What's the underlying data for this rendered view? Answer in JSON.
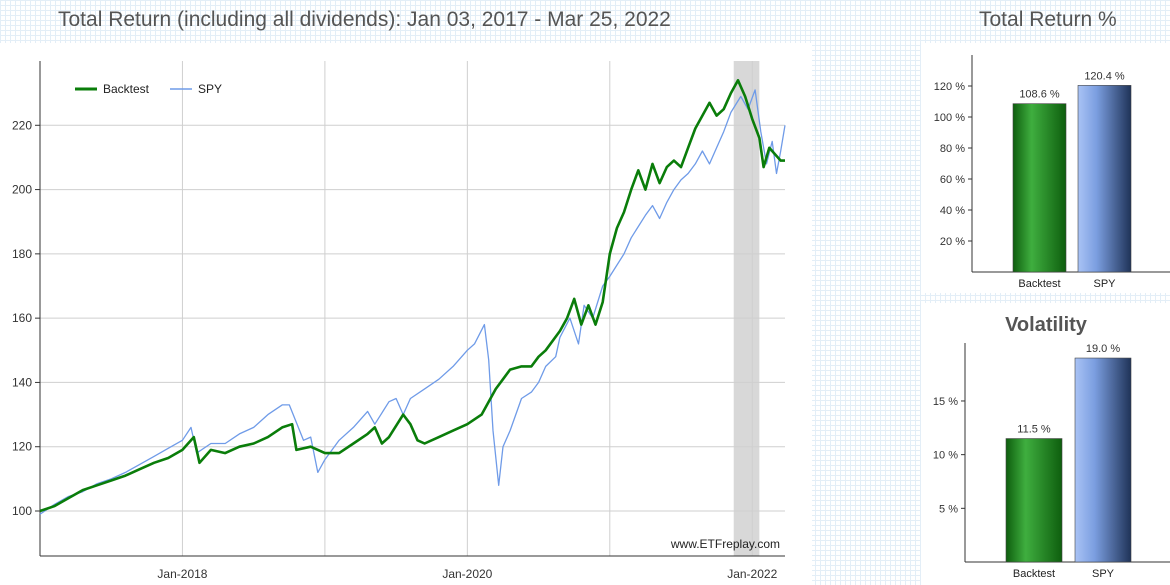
{
  "page": {
    "title": "Total Return (including all dividends): Jan 03, 2017 - Mar 25, 2022",
    "side_title": "Total Return %",
    "watermark": "www.ETFreplay.com"
  },
  "chart_data": [
    {
      "type": "line",
      "x_ticks": [
        "Jan-2018",
        "Jan-2020",
        "Jan-2022"
      ],
      "y_ticks": [
        "100",
        "120",
        "140",
        "160",
        "180",
        "200",
        "220"
      ],
      "ylim": [
        86,
        240
      ],
      "x_range": [
        2017.0,
        2022.23
      ],
      "grid": true,
      "legend_position": "top-left",
      "highlight_range": [
        2021.87,
        2022.05
      ],
      "series": [
        {
          "name": "Backtest",
          "color": "#0a7d0a",
          "points": [
            [
              2017.0,
              100
            ],
            [
              2017.1,
              101.5
            ],
            [
              2017.2,
              104
            ],
            [
              2017.3,
              106.5
            ],
            [
              2017.4,
              108
            ],
            [
              2017.5,
              109.5
            ],
            [
              2017.6,
              111
            ],
            [
              2017.7,
              113
            ],
            [
              2017.8,
              115
            ],
            [
              2017.9,
              116.5
            ],
            [
              2018.0,
              119
            ],
            [
              2018.08,
              123
            ],
            [
              2018.12,
              115
            ],
            [
              2018.2,
              119
            ],
            [
              2018.3,
              118
            ],
            [
              2018.4,
              120
            ],
            [
              2018.5,
              121
            ],
            [
              2018.6,
              123
            ],
            [
              2018.7,
              126
            ],
            [
              2018.77,
              127
            ],
            [
              2018.8,
              119
            ],
            [
              2018.9,
              120
            ],
            [
              2019.0,
              118
            ],
            [
              2019.1,
              118
            ],
            [
              2019.2,
              121
            ],
            [
              2019.3,
              124
            ],
            [
              2019.35,
              126
            ],
            [
              2019.4,
              121
            ],
            [
              2019.45,
              123
            ],
            [
              2019.55,
              130
            ],
            [
              2019.6,
              127
            ],
            [
              2019.65,
              122
            ],
            [
              2019.7,
              121
            ],
            [
              2019.8,
              123
            ],
            [
              2019.9,
              125
            ],
            [
              2020.0,
              127
            ],
            [
              2020.1,
              130
            ],
            [
              2020.15,
              134
            ],
            [
              2020.2,
              138
            ],
            [
              2020.25,
              141
            ],
            [
              2020.3,
              144
            ],
            [
              2020.38,
              145
            ],
            [
              2020.45,
              145
            ],
            [
              2020.5,
              148
            ],
            [
              2020.55,
              150
            ],
            [
              2020.65,
              156
            ],
            [
              2020.7,
              160
            ],
            [
              2020.75,
              166
            ],
            [
              2020.8,
              158
            ],
            [
              2020.85,
              164
            ],
            [
              2020.9,
              158
            ],
            [
              2020.95,
              165
            ],
            [
              2021.0,
              180
            ],
            [
              2021.05,
              188
            ],
            [
              2021.1,
              193
            ],
            [
              2021.15,
              200
            ],
            [
              2021.2,
              206
            ],
            [
              2021.25,
              200
            ],
            [
              2021.3,
              208
            ],
            [
              2021.35,
              202
            ],
            [
              2021.4,
              207
            ],
            [
              2021.45,
              209
            ],
            [
              2021.5,
              207
            ],
            [
              2021.55,
              213
            ],
            [
              2021.6,
              219
            ],
            [
              2021.65,
              223
            ],
            [
              2021.7,
              227
            ],
            [
              2021.75,
              223
            ],
            [
              2021.8,
              225
            ],
            [
              2021.85,
              230
            ],
            [
              2021.9,
              234
            ],
            [
              2021.95,
              229
            ],
            [
              2022.0,
              222
            ],
            [
              2022.05,
              216
            ],
            [
              2022.08,
              207
            ],
            [
              2022.12,
              213
            ],
            [
              2022.16,
              211
            ],
            [
              2022.2,
              209
            ],
            [
              2022.23,
              209
            ]
          ]
        },
        {
          "name": "SPY",
          "color": "#6f9be8",
          "points": [
            [
              2017.0,
              99
            ],
            [
              2017.1,
              102
            ],
            [
              2017.2,
              104.5
            ],
            [
              2017.3,
              106
            ],
            [
              2017.4,
              108.5
            ],
            [
              2017.5,
              110
            ],
            [
              2017.6,
              112
            ],
            [
              2017.7,
              114.5
            ],
            [
              2017.8,
              117
            ],
            [
              2017.9,
              119.5
            ],
            [
              2018.0,
              122
            ],
            [
              2018.06,
              126
            ],
            [
              2018.1,
              118
            ],
            [
              2018.2,
              121
            ],
            [
              2018.3,
              121
            ],
            [
              2018.4,
              124
            ],
            [
              2018.5,
              126
            ],
            [
              2018.6,
              130
            ],
            [
              2018.7,
              133
            ],
            [
              2018.75,
              133
            ],
            [
              2018.85,
              122
            ],
            [
              2018.9,
              123
            ],
            [
              2018.95,
              112
            ],
            [
              2019.0,
              116
            ],
            [
              2019.1,
              122
            ],
            [
              2019.2,
              126
            ],
            [
              2019.3,
              131
            ],
            [
              2019.35,
              127
            ],
            [
              2019.45,
              134
            ],
            [
              2019.5,
              135
            ],
            [
              2019.55,
              130
            ],
            [
              2019.6,
              135
            ],
            [
              2019.7,
              138
            ],
            [
              2019.8,
              141
            ],
            [
              2019.9,
              145
            ],
            [
              2020.0,
              150
            ],
            [
              2020.05,
              152
            ],
            [
              2020.12,
              158
            ],
            [
              2020.15,
              147
            ],
            [
              2020.18,
              125
            ],
            [
              2020.22,
              108
            ],
            [
              2020.25,
              120
            ],
            [
              2020.3,
              125
            ],
            [
              2020.38,
              135
            ],
            [
              2020.45,
              137
            ],
            [
              2020.5,
              140
            ],
            [
              2020.55,
              145
            ],
            [
              2020.62,
              148
            ],
            [
              2020.65,
              154
            ],
            [
              2020.72,
              160
            ],
            [
              2020.78,
              152
            ],
            [
              2020.82,
              164
            ],
            [
              2020.88,
              160
            ],
            [
              2020.95,
              170
            ],
            [
              2021.0,
              173
            ],
            [
              2021.1,
              180
            ],
            [
              2021.15,
              185
            ],
            [
              2021.25,
              192
            ],
            [
              2021.3,
              195
            ],
            [
              2021.35,
              191
            ],
            [
              2021.4,
              196
            ],
            [
              2021.45,
              200
            ],
            [
              2021.5,
              203
            ],
            [
              2021.55,
              205
            ],
            [
              2021.6,
              208
            ],
            [
              2021.65,
              212
            ],
            [
              2021.7,
              208
            ],
            [
              2021.75,
              213
            ],
            [
              2021.8,
              218
            ],
            [
              2021.85,
              224
            ],
            [
              2021.92,
              229
            ],
            [
              2021.97,
              225
            ],
            [
              2022.02,
              231
            ],
            [
              2022.06,
              218
            ],
            [
              2022.1,
              208
            ],
            [
              2022.14,
              215
            ],
            [
              2022.17,
              205
            ],
            [
              2022.2,
              212
            ],
            [
              2022.23,
              220
            ]
          ]
        }
      ]
    },
    {
      "type": "bar",
      "title": "",
      "categories": [
        "Backtest",
        "SPY"
      ],
      "values": [
        108.6,
        120.4
      ],
      "value_labels": [
        "108.6 %",
        "120.4 %"
      ],
      "y_ticks": [
        "20 %",
        "40 %",
        "60 %",
        "80 %",
        "100 %",
        "120 %"
      ],
      "ylim": [
        0,
        140
      ],
      "colors": [
        "#1f8a1f",
        "#7b9ee0"
      ]
    },
    {
      "type": "bar",
      "title": "Volatility",
      "categories": [
        "Backtest",
        "SPY"
      ],
      "values": [
        11.5,
        19.0
      ],
      "value_labels": [
        "11.5 %",
        "19.0 %"
      ],
      "y_ticks": [
        "5 %",
        "10 %",
        "15 %"
      ],
      "ylim": [
        0,
        20.4
      ],
      "colors": [
        "#1f8a1f",
        "#7b9ee0"
      ]
    }
  ]
}
